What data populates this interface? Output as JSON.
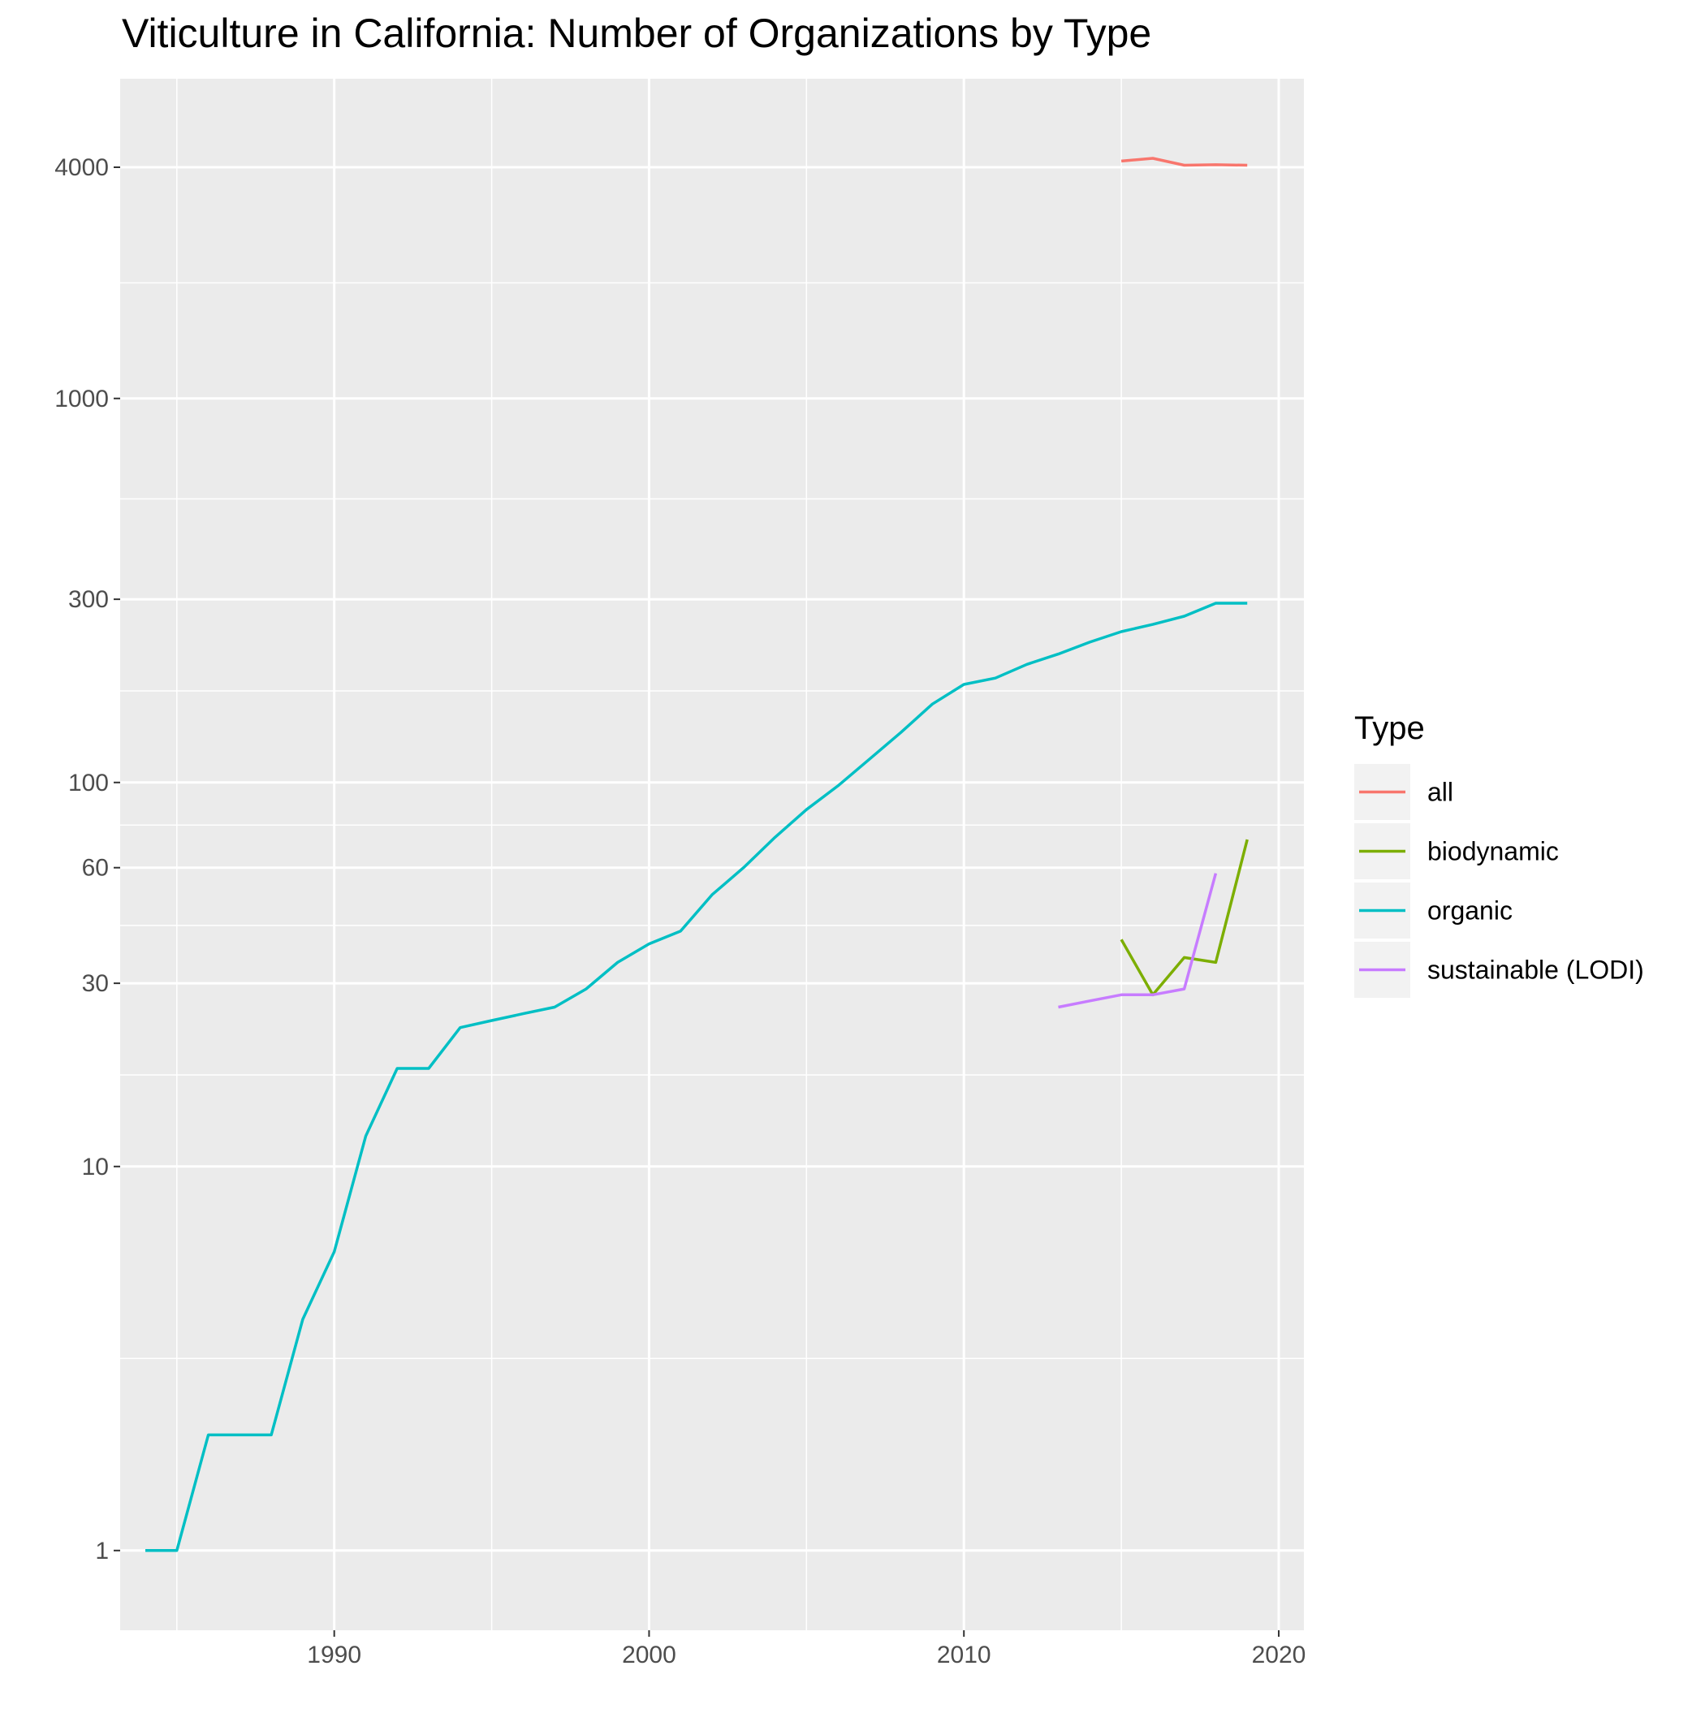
{
  "chart_data": {
    "type": "line",
    "title": "Viticulture in California: Number of Organizations by Type",
    "xlabel": "",
    "ylabel": "",
    "x_scale": "linear",
    "y_scale": "log10",
    "xlim": [
      1983.2,
      2020.8
    ],
    "ylim": [
      0.62,
      6800
    ],
    "x_ticks": [
      1990,
      2000,
      2010,
      2020
    ],
    "x_tick_labels": [
      "1990",
      "2000",
      "2010",
      "2020"
    ],
    "y_ticks": [
      1,
      10,
      30,
      60,
      100,
      300,
      1000,
      4000
    ],
    "y_tick_labels": [
      "1",
      "10",
      "30",
      "60",
      "100",
      "300",
      "1000",
      "4000"
    ],
    "grid": true,
    "legend": {
      "title": "Type",
      "position": "right",
      "entries": [
        "all",
        "biodynamic",
        "organic",
        "sustainable (LODI)"
      ]
    },
    "series": [
      {
        "name": "all",
        "color": "#F8766D",
        "points": [
          [
            2015,
            4150
          ],
          [
            2016,
            4220
          ],
          [
            2017,
            4050
          ],
          [
            2018,
            4060
          ],
          [
            2019,
            4050
          ]
        ]
      },
      {
        "name": "biodynamic",
        "color": "#7CAE00",
        "points": [
          [
            2015,
            39
          ],
          [
            2016,
            28
          ],
          [
            2017,
            35
          ],
          [
            2018,
            34
          ],
          [
            2019,
            71
          ]
        ]
      },
      {
        "name": "organic",
        "color": "#00BFC4",
        "points": [
          [
            1984,
            1
          ],
          [
            1985,
            1
          ],
          [
            1986,
            2
          ],
          [
            1987,
            2
          ],
          [
            1988,
            2
          ],
          [
            1989,
            4
          ],
          [
            1990,
            6
          ],
          [
            1991,
            12
          ],
          [
            1992,
            18
          ],
          [
            1993,
            18
          ],
          [
            1994,
            23
          ],
          [
            1995,
            24
          ],
          [
            1996,
            25
          ],
          [
            1997,
            26
          ],
          [
            1998,
            29
          ],
          [
            1999,
            34
          ],
          [
            2000,
            38
          ],
          [
            2001,
            41
          ],
          [
            2002,
            51
          ],
          [
            2003,
            60
          ],
          [
            2004,
            72
          ],
          [
            2005,
            85
          ],
          [
            2006,
            98
          ],
          [
            2007,
            115
          ],
          [
            2008,
            135
          ],
          [
            2009,
            160
          ],
          [
            2010,
            180
          ],
          [
            2011,
            187
          ],
          [
            2012,
            203
          ],
          [
            2013,
            216
          ],
          [
            2014,
            232
          ],
          [
            2015,
            247
          ],
          [
            2016,
            258
          ],
          [
            2017,
            271
          ],
          [
            2018,
            293
          ],
          [
            2019,
            293
          ]
        ]
      },
      {
        "name": "sustainable (LODI)",
        "color": "#C77CFF",
        "points": [
          [
            2013,
            26
          ],
          [
            2014,
            27
          ],
          [
            2015,
            28
          ],
          [
            2016,
            28
          ],
          [
            2017,
            29
          ],
          [
            2018,
            58
          ]
        ]
      }
    ]
  }
}
